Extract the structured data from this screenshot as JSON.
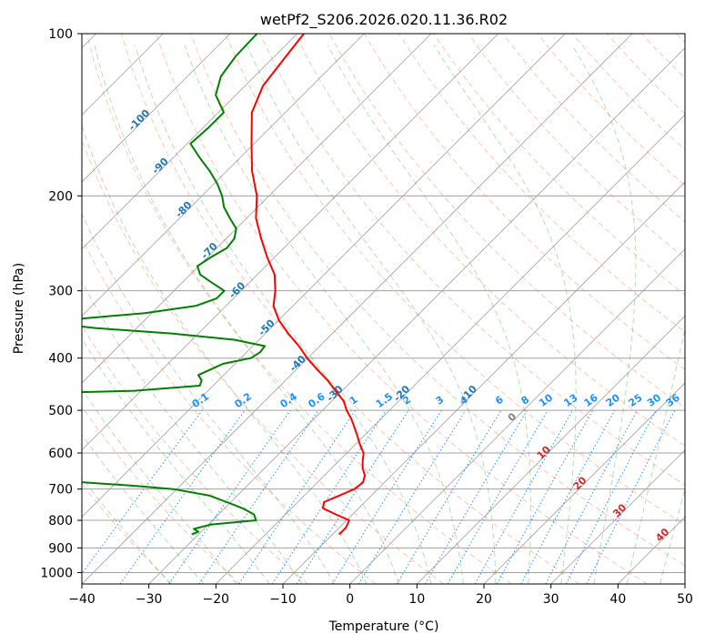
{
  "chart_data": {
    "type": "line",
    "title": "wetPf2_S206.2026.020.11.36.R02",
    "xlabel": "Temperature (°C)",
    "ylabel": "Pressure (hPa)",
    "xlim": [
      -40,
      50
    ],
    "ylim": [
      1050,
      100
    ],
    "y_scale": "log",
    "grid": true,
    "x_ticks": [
      "−40",
      "−30",
      "−20",
      "−10",
      "0",
      "10",
      "20",
      "30",
      "40",
      "50"
    ],
    "x_tick_values": [
      -40,
      -30,
      -20,
      -10,
      0,
      10,
      20,
      30,
      40,
      50
    ],
    "y_ticks": [
      "100",
      "200",
      "300",
      "400",
      "500",
      "600",
      "700",
      "800",
      "900",
      "1000"
    ],
    "y_tick_values": [
      100,
      200,
      300,
      400,
      500,
      600,
      700,
      800,
      900,
      1000
    ],
    "series": [
      {
        "id": "temperature",
        "color": "#ff0000",
        "pressure": [
          850,
          825,
          800,
          780,
          760,
          740,
          720,
          700,
          680,
          660,
          640,
          620,
          600,
          580,
          560,
          540,
          520,
          500,
          480,
          460,
          440,
          420,
          400,
          380,
          360,
          340,
          320,
          300,
          280,
          260,
          240,
          220,
          200,
          180,
          160,
          140,
          125,
          110,
          100
        ],
        "temp": [
          -9.0,
          -9.0,
          -9.6,
          -12.5,
          -15.3,
          -16.1,
          -14.8,
          -13.5,
          -13.2,
          -14.0,
          -15.4,
          -16.5,
          -17.5,
          -19.2,
          -20.8,
          -22.5,
          -24.3,
          -26.4,
          -28.3,
          -31.0,
          -33.7,
          -36.9,
          -40.1,
          -43.1,
          -46.6,
          -50.0,
          -52.9,
          -54.9,
          -57.4,
          -61.1,
          -64.8,
          -68.6,
          -71.8,
          -76.2,
          -80.4,
          -85.0,
          -87.3,
          -88.3,
          -89.0
        ]
      },
      {
        "id": "dewpoint",
        "color": "#008000",
        "pressure": [
          850,
          840,
          830,
          815,
          800,
          780,
          760,
          740,
          720,
          700,
          690,
          680,
          670,
          660,
          650,
          640,
          630,
          620,
          610,
          605,
          600,
          590,
          580,
          570,
          560,
          545,
          530,
          520,
          510,
          500,
          490,
          480,
          470,
          460,
          450,
          440,
          430,
          420,
          410,
          400,
          390,
          380,
          370,
          360,
          352,
          345,
          340,
          330,
          320,
          310,
          300,
          290,
          280,
          270,
          260,
          250,
          240,
          230,
          220,
          210,
          200,
          190,
          180,
          170,
          160,
          150,
          140,
          130,
          120,
          110,
          100
        ],
        "temp": [
          -31.0,
          -30.4,
          -31.5,
          -29.7,
          -23.5,
          -24.7,
          -27.3,
          -30.6,
          -34.1,
          -40.5,
          -47.0,
          -55.0,
          -63.0,
          -70.5,
          -69.0,
          -65.0,
          -63.5,
          -67.0,
          -73.5,
          -78.0,
          -79.5,
          -79.0,
          -78.0,
          -70.8,
          -71.5,
          -77.5,
          -80.5,
          -78.4,
          -83.0,
          -85.6,
          -87.5,
          -88.8,
          -89.2,
          -61.0,
          -52.0,
          -52.5,
          -53.8,
          -52.8,
          -51.8,
          -48.5,
          -48.0,
          -48.2,
          -53.6,
          -64.0,
          -76.0,
          -83.0,
          -82.0,
          -71.0,
          -64.5,
          -62.5,
          -62.5,
          -65.5,
          -68.5,
          -70.2,
          -69.5,
          -68.5,
          -68.8,
          -70.0,
          -72.5,
          -75.0,
          -77.0,
          -79.5,
          -82.5,
          -86.0,
          -89.5,
          -89.2,
          -89.2,
          -93.0,
          -95.0,
          -95.8,
          -96.0
        ]
      }
    ],
    "dry_adiabat_labels": [
      "-100",
      "-90",
      "-80",
      "-70",
      "-60",
      "-50",
      "-40",
      "-30",
      "-20",
      "-10"
    ],
    "moist_adiabat_labels": [
      "0",
      "10",
      "20",
      "30",
      "40"
    ],
    "mixing_ratio_labels": [
      "0.1",
      "0.2",
      "0.4",
      "0.6",
      "1",
      "1.5",
      "2",
      "3",
      "4",
      "6",
      "8",
      "10",
      "13",
      "16",
      "20",
      "25",
      "30",
      "36"
    ],
    "colors": {
      "isotherm": "#a0a0a0",
      "dry_adiabat": "#ff7f50",
      "moist_adiabat": "#2ca02c",
      "mixing_ratio": "#1e90ff",
      "dry_label": "#1f77b4",
      "moist_label": "#d62728",
      "zero_label": "#808080"
    }
  }
}
